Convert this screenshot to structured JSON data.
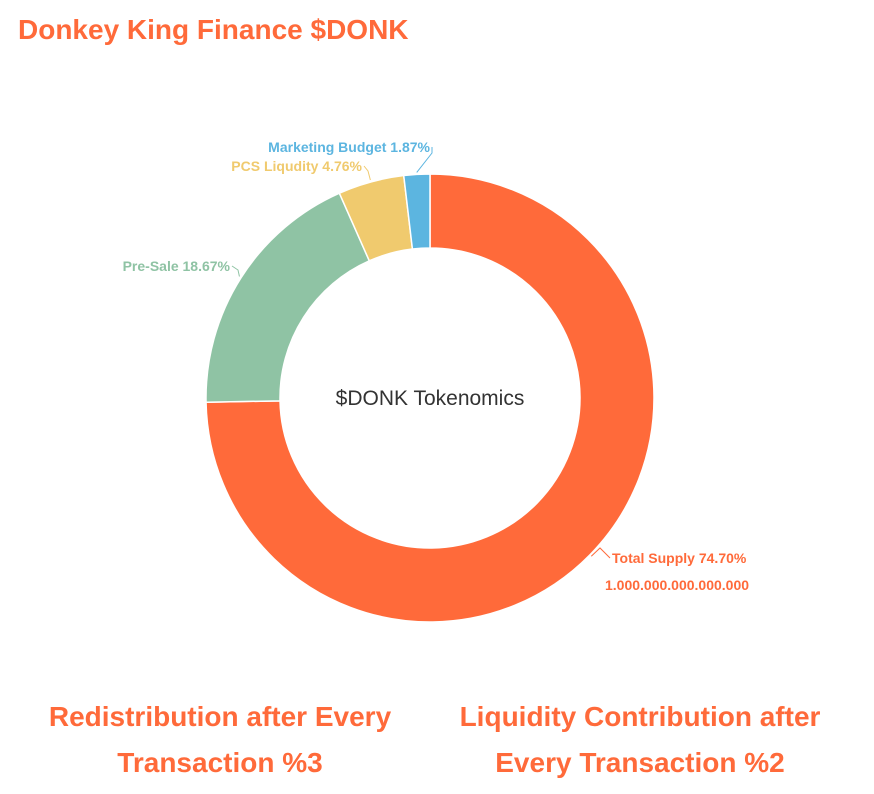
{
  "header": {
    "title": "Donkey King Finance $DONK"
  },
  "chart_data": {
    "type": "pie",
    "title": "$DONK Tokenomics",
    "slices": [
      {
        "label": "Total Supply",
        "value": 74.7,
        "display": "Total Supply 74.70%",
        "color": "#ff6a3a"
      },
      {
        "label": "Pre-Sale",
        "value": 18.67,
        "display": "Pre-Sale 18.67%",
        "color": "#8fc3a4"
      },
      {
        "label": "PCS Liqudity",
        "value": 4.76,
        "display": "PCS Liqudity 4.76%",
        "color": "#f0ca6e"
      },
      {
        "label": "Marketing Budget",
        "value": 1.87,
        "display": "Marketing Budget 1.87%",
        "color": "#5cb5e0"
      }
    ],
    "supply_note": "1.000.000.000.000.000"
  },
  "features": {
    "left": {
      "line1": "Redistribution after Every",
      "line2": "Transaction %3"
    },
    "right": {
      "line1": "Liquidity Contribution after",
      "line2": "Every Transaction %2"
    }
  }
}
